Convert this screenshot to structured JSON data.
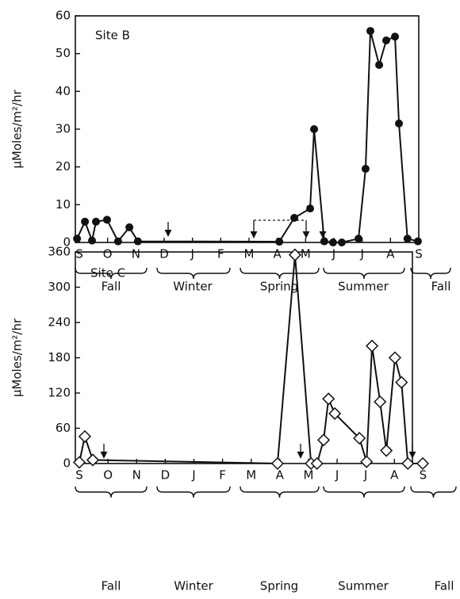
{
  "chart_data": [
    {
      "type": "line",
      "annotation": "Site B",
      "ylabel": "μMoles/m²/hr",
      "x": [
        -0.08,
        0.2,
        0.45,
        0.59,
        0.98,
        1.37,
        1.77,
        2.07,
        7.07,
        7.6,
        8.16,
        8.3,
        8.66,
        8.97,
        9.28,
        9.87,
        10.12,
        10.29,
        10.6,
        10.85,
        11.16,
        11.3,
        11.6,
        11.97
      ],
      "values": [
        1,
        5.5,
        0.5,
        5.5,
        6,
        0.3,
        4,
        0.3,
        0.2,
        6.5,
        9,
        30,
        0.3,
        0,
        0,
        1,
        19.5,
        56,
        47,
        53.5,
        54.5,
        31.5,
        1,
        0.3
      ],
      "color": "#111111",
      "marker": "circle",
      "xlim": [
        -0.14,
        12.0
      ],
      "ylim": [
        0,
        60
      ],
      "yticks": [
        0,
        10,
        20,
        30,
        40,
        50,
        60
      ],
      "xticks": [
        {
          "value": 0,
          "label": "S"
        },
        {
          "value": 1,
          "label": "O"
        },
        {
          "value": 2,
          "label": "N"
        },
        {
          "value": 3,
          "label": "D"
        },
        {
          "value": 4,
          "label": "J"
        },
        {
          "value": 5,
          "label": "F"
        },
        {
          "value": 6,
          "label": "M"
        },
        {
          "value": 7,
          "label": "A"
        },
        {
          "value": 8,
          "label": "M"
        },
        {
          "value": 9,
          "label": "J"
        },
        {
          "value": 10,
          "label": "J"
        },
        {
          "value": 11,
          "label": "A"
        },
        {
          "value": 12,
          "label": "S"
        }
      ],
      "seasons": [
        "Fall",
        "Winter",
        "Spring",
        "Summer",
        "Fall"
      ]
    },
    {
      "type": "line",
      "annotation": "Site C",
      "ylabel": "μMoles/m²/hr",
      "x": [
        0,
        0.19,
        0.47,
        6.92,
        7.53,
        8.09,
        8.3,
        8.53,
        8.7,
        8.92,
        9.78,
        10.03,
        10.22,
        10.5,
        10.72,
        11.02,
        11.25,
        11.47,
        11.99
      ],
      "values": [
        2,
        46,
        6,
        0,
        355,
        0,
        0,
        40,
        110,
        85,
        43,
        3,
        200,
        105,
        22,
        180,
        138,
        0,
        0
      ],
      "color": "#111111",
      "marker": "diamond",
      "xlim": [
        -0.14,
        11.63
      ],
      "ylim": [
        0,
        360
      ],
      "yticks": [
        0,
        60,
        120,
        180,
        240,
        300,
        360
      ],
      "xticks": [
        {
          "value": 0,
          "label": "S"
        },
        {
          "value": 1,
          "label": "O"
        },
        {
          "value": 2,
          "label": "N"
        },
        {
          "value": 3,
          "label": "D"
        },
        {
          "value": 4,
          "label": "J"
        },
        {
          "value": 5,
          "label": "F"
        },
        {
          "value": 6,
          "label": "M"
        },
        {
          "value": 7,
          "label": "A"
        },
        {
          "value": 8,
          "label": "M"
        },
        {
          "value": 9,
          "label": "J"
        },
        {
          "value": 10,
          "label": "J"
        },
        {
          "value": 11,
          "label": "A"
        },
        {
          "value": 12,
          "label": "S"
        }
      ],
      "seasons": [
        "Fall",
        "Winter",
        "Spring",
        "Summer",
        "Fall"
      ]
    }
  ]
}
